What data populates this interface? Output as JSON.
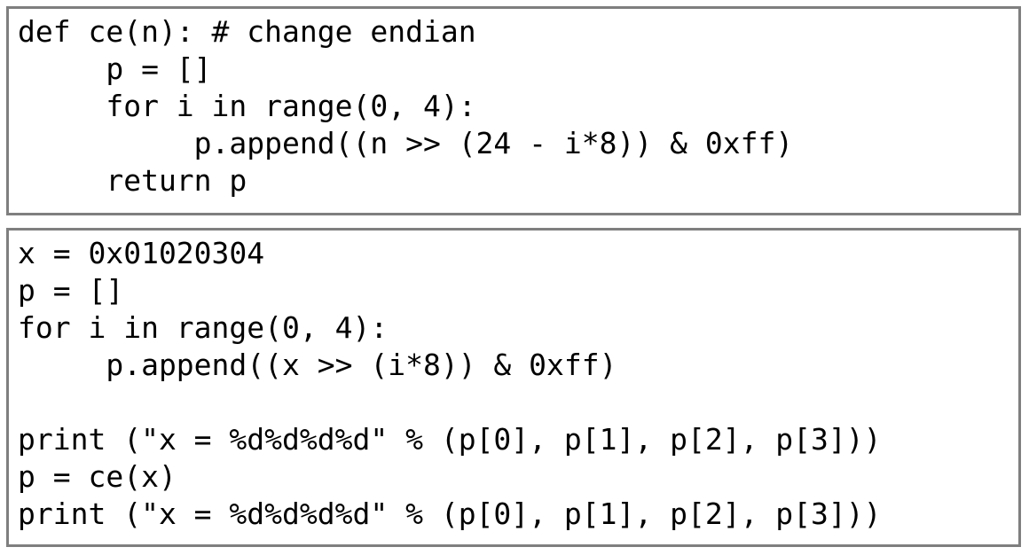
{
  "blocks": [
    {
      "lines": [
        "def ce(n): # change endian",
        "     p = []",
        "     for i in range(0, 4):",
        "          p.append((n >> (24 - i*8)) & 0xff)",
        "     return p"
      ]
    },
    {
      "lines": [
        "x = 0x01020304",
        "p = []",
        "for i in range(0, 4):",
        "     p.append((x >> (i*8)) & 0xff)",
        "",
        "print (\"x = %d%d%d%d\" % (p[0], p[1], p[2], p[3]))",
        "p = ce(x)",
        "print (\"x = %d%d%d%d\" % (p[0], p[1], p[2], p[3]))"
      ]
    }
  ]
}
